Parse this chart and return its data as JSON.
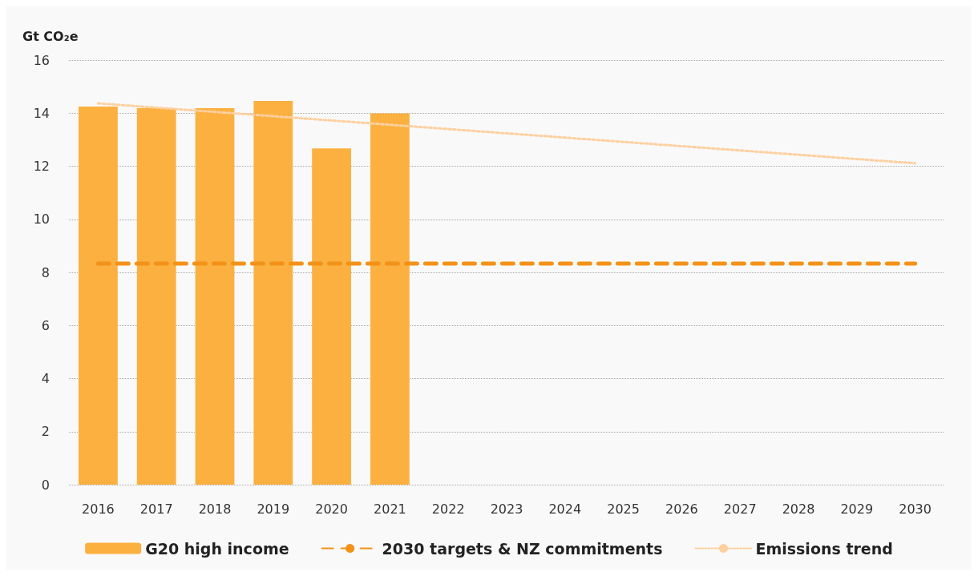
{
  "chart_data": {
    "type": "bar",
    "ylabel": "Gt CO₂e",
    "categories": [
      "2016",
      "2017",
      "2018",
      "2019",
      "2020",
      "2021",
      "2022",
      "2023",
      "2024",
      "2025",
      "2026",
      "2027",
      "2028",
      "2029",
      "2030"
    ],
    "series": [
      {
        "name": "G20 high income",
        "color": "#fbb040",
        "values": [
          14.25,
          14.19,
          14.19,
          14.46,
          12.67,
          13.99,
          null,
          null,
          null,
          null,
          null,
          null,
          null,
          null,
          null
        ]
      },
      {
        "name": "2030 targets & NZ commitments",
        "type": "line",
        "color": "#f39218",
        "line_style": "dashed",
        "values": [
          8.33,
          null,
          null,
          null,
          null,
          null,
          null,
          null,
          null,
          null,
          null,
          null,
          null,
          null,
          8.33
        ]
      },
      {
        "name": "Emissions trend",
        "type": "line",
        "color": "#fdd0a0",
        "line_style": "dotted",
        "values": [
          14.37,
          null,
          null,
          null,
          null,
          null,
          null,
          null,
          null,
          null,
          null,
          null,
          null,
          null,
          12.11
        ]
      }
    ],
    "ylim": [
      0,
      16
    ],
    "yticks": [
      0,
      2,
      4,
      6,
      8,
      10,
      12,
      14,
      16
    ],
    "grid": "y",
    "legend": "bottom",
    "marker": "none"
  }
}
